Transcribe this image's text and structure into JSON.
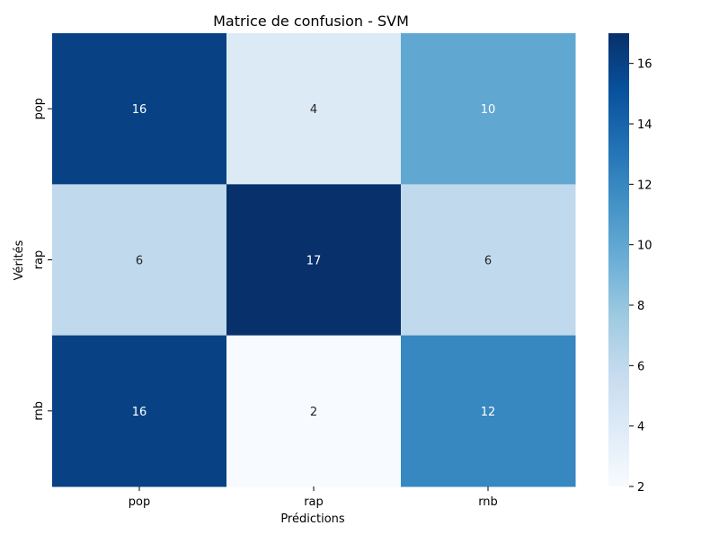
{
  "chart_data": {
    "type": "heatmap",
    "title": "Matrice de confusion - SVM",
    "xlabel": "Prédictions",
    "ylabel": "Vérités",
    "x_categories": [
      "pop",
      "rap",
      "rnb"
    ],
    "y_categories": [
      "pop",
      "rap",
      "rnb"
    ],
    "values": [
      [
        16,
        4,
        10
      ],
      [
        6,
        17,
        6
      ],
      [
        16,
        2,
        12
      ]
    ],
    "colormap": "Blues",
    "colorbar": {
      "range": [
        2,
        17
      ],
      "ticks": [
        2,
        4,
        6,
        8,
        10,
        12,
        14,
        16
      ]
    }
  }
}
